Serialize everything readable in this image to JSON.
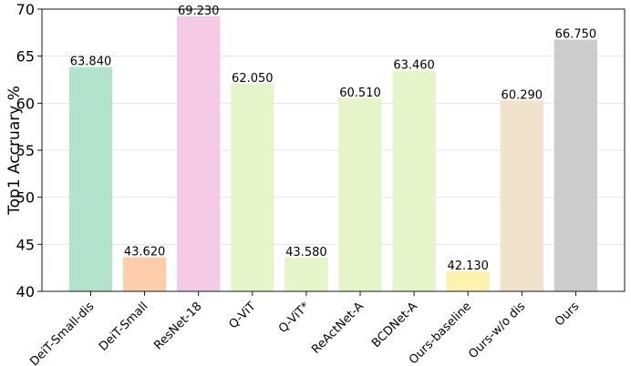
{
  "chart_data": {
    "type": "bar",
    "title": "",
    "xlabel": "",
    "ylabel": "Top1 Accruary %",
    "ylim": [
      40,
      70
    ],
    "yticks": [
      40,
      45,
      50,
      55,
      60,
      65,
      70
    ],
    "ytick_labels": [
      "40",
      "45",
      "50",
      "55",
      "60",
      "65",
      "70"
    ],
    "grid": "y",
    "categories": [
      "DeiT-Small-dis",
      "DeiT-Small",
      "ResNet-18",
      "Q-ViT",
      "Q-ViT*",
      "ReActNet-A",
      "BCDNet-A",
      "Ours-baseline",
      "Ours-w/o dis",
      "Ours"
    ],
    "values": [
      63.84,
      43.62,
      69.23,
      62.05,
      43.58,
      60.51,
      63.46,
      42.13,
      60.29,
      66.75
    ],
    "value_labels": [
      "63.840",
      "43.620",
      "69.230",
      "62.050",
      "43.580",
      "60.510",
      "63.460",
      "42.130",
      "60.290",
      "66.750"
    ],
    "colors": [
      "#b3e2cd",
      "#fdcdac",
      "#f4cae4",
      "#e6f5c9",
      "#e6f5c9",
      "#e6f5c9",
      "#e6f5c9",
      "#fff2ae",
      "#f1e2cc",
      "#cccccc"
    ]
  }
}
